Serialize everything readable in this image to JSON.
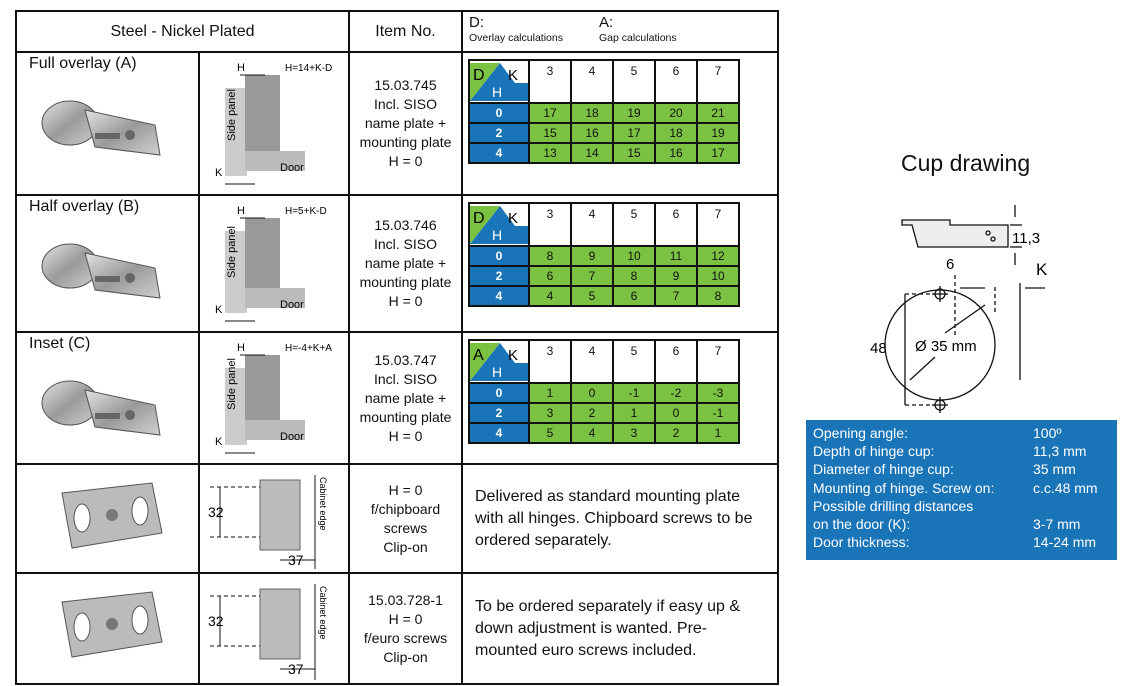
{
  "header": {
    "material": "Steel - Nickel Plated",
    "item_no": "Item No.",
    "d_label": "D:",
    "d_sub": "Overlay calculations",
    "a_label": "A:",
    "a_sub": "Gap calculations"
  },
  "rows": [
    {
      "label": "Full overlay (A)",
      "formula": "H=14+K-D",
      "item": [
        "15.03.745",
        "Incl. SISO",
        "name plate +",
        "mounting plate",
        "H = 0"
      ],
      "calc": {
        "corner": "D",
        "k": "K",
        "h": "H",
        "k_values": [
          "3",
          "4",
          "5",
          "6",
          "7"
        ],
        "h_values": [
          "0",
          "2",
          "4"
        ],
        "values": [
          [
            "17",
            "18",
            "19",
            "20",
            "21"
          ],
          [
            "15",
            "16",
            "17",
            "18",
            "19"
          ],
          [
            "13",
            "14",
            "15",
            "16",
            "17"
          ]
        ]
      }
    },
    {
      "label": "Half overlay (B)",
      "formula": "H=5+K-D",
      "item": [
        "15.03.746",
        "Incl. SISO",
        "name plate +",
        "mounting plate",
        "H = 0"
      ],
      "calc": {
        "corner": "D",
        "k": "K",
        "h": "H",
        "k_values": [
          "3",
          "4",
          "5",
          "6",
          "7"
        ],
        "h_values": [
          "0",
          "2",
          "4"
        ],
        "values": [
          [
            "8",
            "9",
            "10",
            "11",
            "12"
          ],
          [
            "6",
            "7",
            "8",
            "9",
            "10"
          ],
          [
            "4",
            "5",
            "6",
            "7",
            "8"
          ]
        ]
      }
    },
    {
      "label": "Inset (C)",
      "formula": "H=-4+K+A",
      "item": [
        "15.03.747",
        "Incl. SISO",
        "name plate +",
        "mounting plate",
        "H = 0"
      ],
      "calc": {
        "corner": "A",
        "k": "K",
        "h": "H",
        "k_values": [
          "3",
          "4",
          "5",
          "6",
          "7"
        ],
        "h_values": [
          "0",
          "2",
          "4"
        ],
        "values": [
          [
            "1",
            "0",
            "-1",
            "-2",
            "-3"
          ],
          [
            "3",
            "2",
            "1",
            "0",
            "-1"
          ],
          [
            "5",
            "4",
            "3",
            "2",
            "1"
          ]
        ]
      }
    },
    {
      "item": [
        "H = 0",
        "f/chipboard",
        "screws",
        "Clip-on"
      ],
      "note": "Delivered as standard mounting plate with all hinges. Chipboard screws to be ordered separately.",
      "dim_v": "32",
      "dim_h": "37",
      "edge": "Cabinet edge"
    },
    {
      "item": [
        "15.03.728-1",
        "H = 0",
        "f/euro screws",
        "Clip-on"
      ],
      "note": "To be ordered separately if easy up & down adjustment is wanted. Pre-mounted euro screws included.",
      "dim_v": "32",
      "dim_h": "37",
      "edge": "Cabinet edge"
    }
  ],
  "drawing_labels": {
    "h": "H",
    "d": "D",
    "k": "K",
    "a": "A",
    "side_panel": "Side panel",
    "door": "Door"
  },
  "cup": {
    "title": "Cup drawing",
    "depth": "11,3",
    "k": "K",
    "six": "6",
    "height": "48",
    "diameter": "Ø 35 mm"
  },
  "specs": [
    {
      "label": "Opening angle:",
      "value": "100º"
    },
    {
      "label": "Depth of hinge cup:",
      "value": "11,3 mm"
    },
    {
      "label": "Diameter of hinge cup:",
      "value": "35 mm"
    },
    {
      "label": "Mounting of hinge. Screw on:",
      "value": "c.c.48 mm"
    },
    {
      "label": "Possible drilling distances",
      "value": ""
    },
    {
      "label": "on the door (K):",
      "value": "3-7 mm"
    },
    {
      "label": "Door thickness:",
      "value": "14-24 mm"
    }
  ],
  "colors": {
    "green": "#7cc242",
    "blue": "#1a74b8"
  }
}
